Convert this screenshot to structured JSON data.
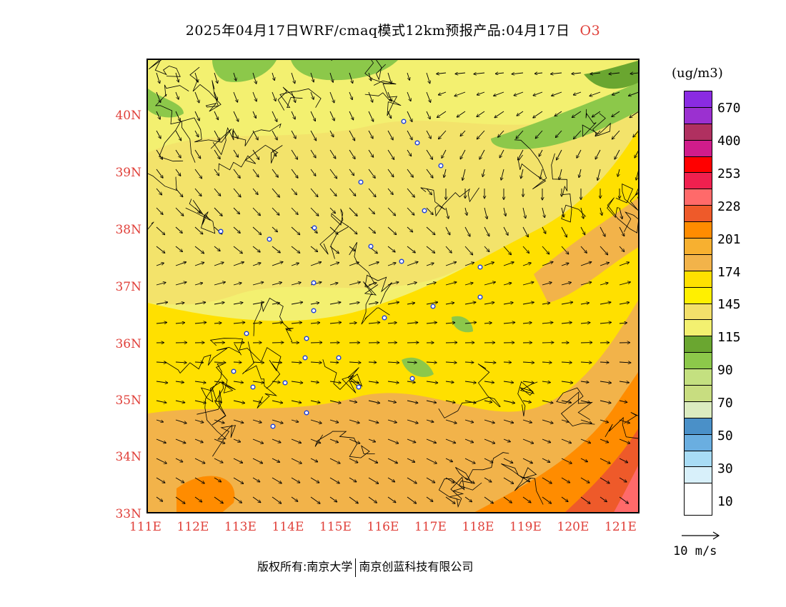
{
  "title": {
    "main": "2025年04月17日WRF/cmaq模式12km预报产品:04月17日",
    "pollutant": "O3"
  },
  "axes": {
    "lat_labels": [
      "40N",
      "39N",
      "38N",
      "37N",
      "36N",
      "35N",
      "34N",
      "33N"
    ],
    "lon_labels": [
      "111E",
      "112E",
      "113E",
      "114E",
      "115E",
      "116E",
      "117E",
      "118E",
      "119E",
      "120E",
      "121E"
    ]
  },
  "colorbar": {
    "unit": "(ug/m3)",
    "colors": [
      "#8a2be2",
      "#9b30d0",
      "#b03060",
      "#d01c8b",
      "#ff0000",
      "#f0204f",
      "#ff6a6a",
      "#ee5a2a",
      "#ff8c00",
      "#f7b030",
      "#f2b34a",
      "#ffe000",
      "#fff000",
      "#f3e06a",
      "#f3f070",
      "#6aa630",
      "#8cc84a",
      "#c4e080",
      "#c8dd80",
      "#dcecc0",
      "#4a90c8",
      "#6aaee0",
      "#a8dcf5",
      "#d8f0fa",
      "#ffffff"
    ],
    "ticks": [
      "670",
      "400",
      "253",
      "228",
      "201",
      "174",
      "145",
      "115",
      "90",
      "70",
      "50",
      "30",
      "10"
    ]
  },
  "wind_reference": {
    "label": "10 m/s"
  },
  "footer": {
    "left": "版权所有:南京大学",
    "right": "南京创蓝科技有限公司"
  },
  "map_data": {
    "lon_range": [
      111,
      121.4
    ],
    "lat_range": [
      33,
      41
    ],
    "station_count": 27,
    "colors": {
      "axis_label": "#e0403a",
      "station": "#2244dd"
    }
  }
}
